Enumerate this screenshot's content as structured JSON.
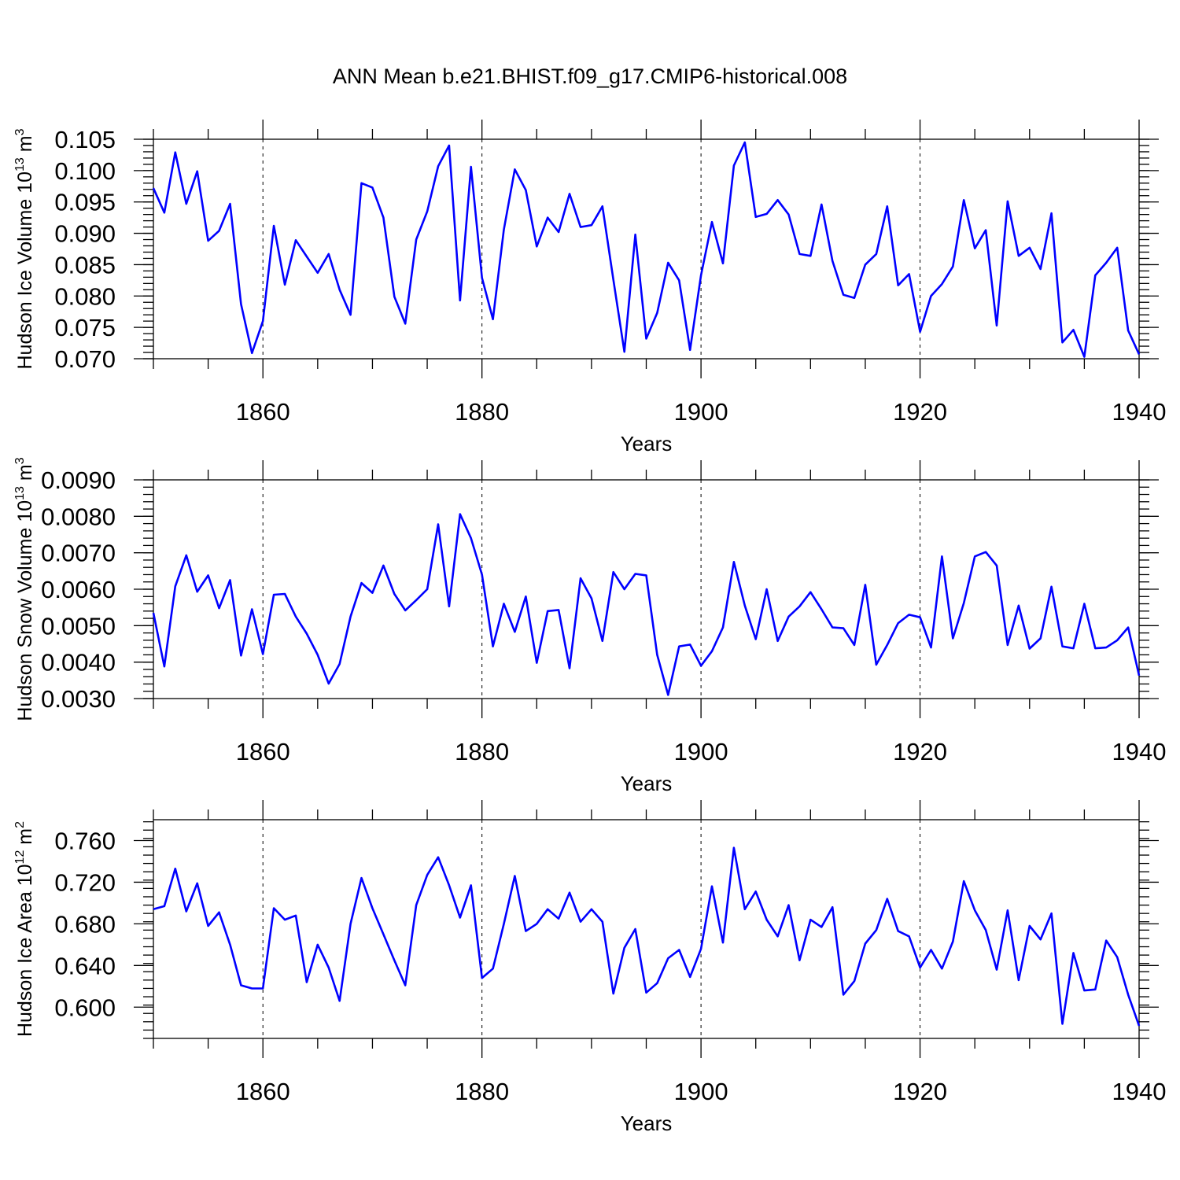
{
  "title": "ANN Mean b.e21.BHIST.f09_g17.CMIP6-historical.008",
  "colors": {
    "series": "#0000ff",
    "axes": "#000000",
    "background": "#ffffff"
  },
  "chart_data": [
    {
      "type": "line",
      "ylabel": "Hudson Ice Volume 10",
      "ylabel_exp": "13",
      "ylabel_unit": " m",
      "ylabel_unit_exp": "3",
      "xlabel": "Years",
      "xlim": [
        1850,
        1940
      ],
      "ylim": [
        0.07,
        0.105
      ],
      "x_ticks": [
        1860,
        1880,
        1900,
        1920,
        1940
      ],
      "x_tick_labels": [
        "1860",
        "1880",
        "1900",
        "1920",
        "1940"
      ],
      "y_ticks": [
        0.07,
        0.075,
        0.08,
        0.085,
        0.09,
        0.095,
        0.1,
        0.105
      ],
      "y_tick_labels": [
        "0.070",
        "0.075",
        "0.080",
        "0.085",
        "0.090",
        "0.095",
        "0.100",
        "0.105"
      ],
      "grid_x": [
        1860,
        1880,
        1900,
        1920
      ],
      "x_start": 1850,
      "values": [
        0.0972,
        0.0933,
        0.1029,
        0.0947,
        0.0999,
        0.0888,
        0.0904,
        0.0947,
        0.0787,
        0.0709,
        0.076,
        0.0912,
        0.0818,
        0.0889,
        0.0863,
        0.0837,
        0.0867,
        0.081,
        0.077,
        0.098,
        0.0973,
        0.0925,
        0.0799,
        0.0756,
        0.089,
        0.0935,
        0.1007,
        0.104,
        0.0793,
        0.1006,
        0.0829,
        0.0763,
        0.0906,
        0.1002,
        0.0969,
        0.0879,
        0.0925,
        0.0902,
        0.0963,
        0.091,
        0.0913,
        0.0943,
        0.0826,
        0.0711,
        0.0898,
        0.0732,
        0.0773,
        0.0853,
        0.0825,
        0.0714,
        0.0833,
        0.0918,
        0.0852,
        0.1008,
        0.1045,
        0.0926,
        0.0931,
        0.0953,
        0.093,
        0.0867,
        0.0864,
        0.0946,
        0.0856,
        0.0802,
        0.0797,
        0.085,
        0.0867,
        0.0943,
        0.0817,
        0.0835,
        0.0743,
        0.08,
        0.0819,
        0.0847,
        0.0953,
        0.0876,
        0.0905,
        0.0753,
        0.0951,
        0.0864,
        0.0877,
        0.0843,
        0.0932,
        0.0726,
        0.0746,
        0.0703,
        0.0833,
        0.0853,
        0.0877,
        0.0745,
        0.0707
      ]
    },
    {
      "type": "line",
      "ylabel": "Hudson Snow Volume 10",
      "ylabel_exp": "13",
      "ylabel_unit": " m",
      "ylabel_unit_exp": "3",
      "xlabel": "Years",
      "xlim": [
        1850,
        1940
      ],
      "ylim": [
        0.003,
        0.009
      ],
      "x_ticks": [
        1860,
        1880,
        1900,
        1920,
        1940
      ],
      "x_tick_labels": [
        "1860",
        "1880",
        "1900",
        "1920",
        "1940"
      ],
      "y_ticks": [
        0.003,
        0.004,
        0.005,
        0.006,
        0.007,
        0.008,
        0.009
      ],
      "y_tick_labels": [
        "0.0030",
        "0.0040",
        "0.0050",
        "0.0060",
        "0.0070",
        "0.0080",
        "0.0090"
      ],
      "grid_x": [
        1860,
        1880,
        1900,
        1920
      ],
      "x_start": 1850,
      "values": [
        0.00535,
        0.00388,
        0.00608,
        0.00693,
        0.00593,
        0.00638,
        0.00548,
        0.00625,
        0.00418,
        0.00545,
        0.00422,
        0.00585,
        0.00587,
        0.00525,
        0.00478,
        0.0042,
        0.00341,
        0.00395,
        0.00525,
        0.00617,
        0.0059,
        0.00665,
        0.00587,
        0.00542,
        0.0057,
        0.006,
        0.00778,
        0.00553,
        0.00806,
        0.0074,
        0.0064,
        0.00443,
        0.0056,
        0.00483,
        0.0058,
        0.00398,
        0.0054,
        0.00543,
        0.00383,
        0.0063,
        0.00575,
        0.00458,
        0.00647,
        0.006,
        0.00642,
        0.00638,
        0.0042,
        0.0031,
        0.00443,
        0.00448,
        0.0039,
        0.0043,
        0.00495,
        0.00675,
        0.00555,
        0.00463,
        0.006,
        0.00458,
        0.00525,
        0.00553,
        0.00592,
        0.00545,
        0.00495,
        0.00493,
        0.00447,
        0.00612,
        0.00393,
        0.00447,
        0.00507,
        0.0053,
        0.00523,
        0.0044,
        0.0069,
        0.00465,
        0.00562,
        0.0069,
        0.00702,
        0.00665,
        0.00447,
        0.00555,
        0.00437,
        0.00465,
        0.00607,
        0.00443,
        0.00438,
        0.0056,
        0.00438,
        0.0044,
        0.0046,
        0.00495,
        0.00363
      ]
    },
    {
      "type": "line",
      "ylabel": "Hudson Ice Area 10",
      "ylabel_exp": "12",
      "ylabel_unit": " m",
      "ylabel_unit_exp": "2",
      "xlabel": "Years",
      "xlim": [
        1850,
        1940
      ],
      "ylim": [
        0.57,
        0.78
      ],
      "x_ticks": [
        1860,
        1880,
        1900,
        1920,
        1940
      ],
      "x_tick_labels": [
        "1860",
        "1880",
        "1900",
        "1920",
        "1940"
      ],
      "y_ticks": [
        0.6,
        0.64,
        0.68,
        0.72,
        0.76
      ],
      "y_tick_labels": [
        "0.600",
        "0.640",
        "0.680",
        "0.720",
        "0.760"
      ],
      "grid_x": [
        1860,
        1880,
        1900,
        1920
      ],
      "x_start": 1850,
      "values": [
        0.694,
        0.697,
        0.733,
        0.692,
        0.719,
        0.678,
        0.691,
        0.66,
        0.621,
        0.618,
        0.618,
        0.695,
        0.684,
        0.688,
        0.624,
        0.66,
        0.638,
        0.606,
        0.68,
        0.724,
        0.695,
        0.67,
        0.645,
        0.621,
        0.698,
        0.727,
        0.744,
        0.717,
        0.686,
        0.717,
        0.628,
        0.637,
        0.68,
        0.726,
        0.673,
        0.68,
        0.694,
        0.685,
        0.71,
        0.682,
        0.694,
        0.682,
        0.613,
        0.657,
        0.675,
        0.614,
        0.623,
        0.647,
        0.655,
        0.629,
        0.656,
        0.716,
        0.662,
        0.753,
        0.694,
        0.711,
        0.684,
        0.668,
        0.698,
        0.645,
        0.684,
        0.677,
        0.696,
        0.612,
        0.625,
        0.661,
        0.674,
        0.704,
        0.673,
        0.668,
        0.638,
        0.655,
        0.637,
        0.663,
        0.721,
        0.693,
        0.674,
        0.636,
        0.693,
        0.626,
        0.678,
        0.665,
        0.69,
        0.584,
        0.652,
        0.616,
        0.617,
        0.664,
        0.648,
        0.612,
        0.582
      ]
    }
  ]
}
